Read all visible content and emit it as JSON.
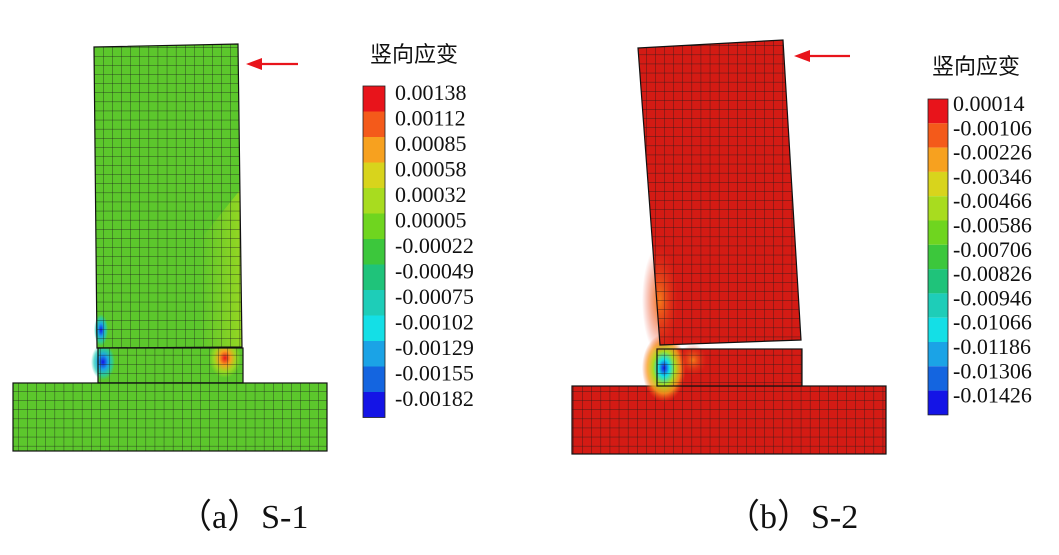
{
  "panels": [
    {
      "id": "a",
      "caption": "（a）S-1",
      "legend_title": "竖向应变",
      "legend_values": [
        "0.00138",
        "0.00112",
        "0.00085",
        "0.00058",
        "0.00032",
        "0.00005",
        "-0.00022",
        "-0.00049",
        "-0.00075",
        "-0.00102",
        "-0.00129",
        "-0.00155",
        "-0.00182"
      ],
      "legend_colors": [
        "#e8141b",
        "#f45a1a",
        "#f7a11f",
        "#d8d41c",
        "#a8dc1f",
        "#6fd51f",
        "#3cc73c",
        "#1fc37a",
        "#1ecdb8",
        "#14dfe6",
        "#1ba3e6",
        "#1465e0",
        "#1414e6"
      ],
      "main_color": "#5cc72c"
    },
    {
      "id": "b",
      "caption": "（b）S-2",
      "legend_title": "竖向应变",
      "legend_values": [
        "0.00014",
        "-0.00106",
        "-0.00226",
        "-0.00346",
        "-0.00466",
        "-0.00586",
        "-0.00706",
        "-0.00826",
        "-0.00946",
        "-0.01066",
        "-0.01186",
        "-0.01306",
        "-0.01426"
      ],
      "legend_colors": [
        "#e8141b",
        "#f45a1a",
        "#f7a11f",
        "#d8d41c",
        "#a8dc1f",
        "#6fd51f",
        "#3cc73c",
        "#1fc37a",
        "#1ecdb8",
        "#14dfe6",
        "#1ba3e6",
        "#1465e0",
        "#1414e6"
      ],
      "main_color": "#d41b14"
    }
  ],
  "arrow_color": "#e8141b",
  "grid_line_color": "#1a1a1a"
}
